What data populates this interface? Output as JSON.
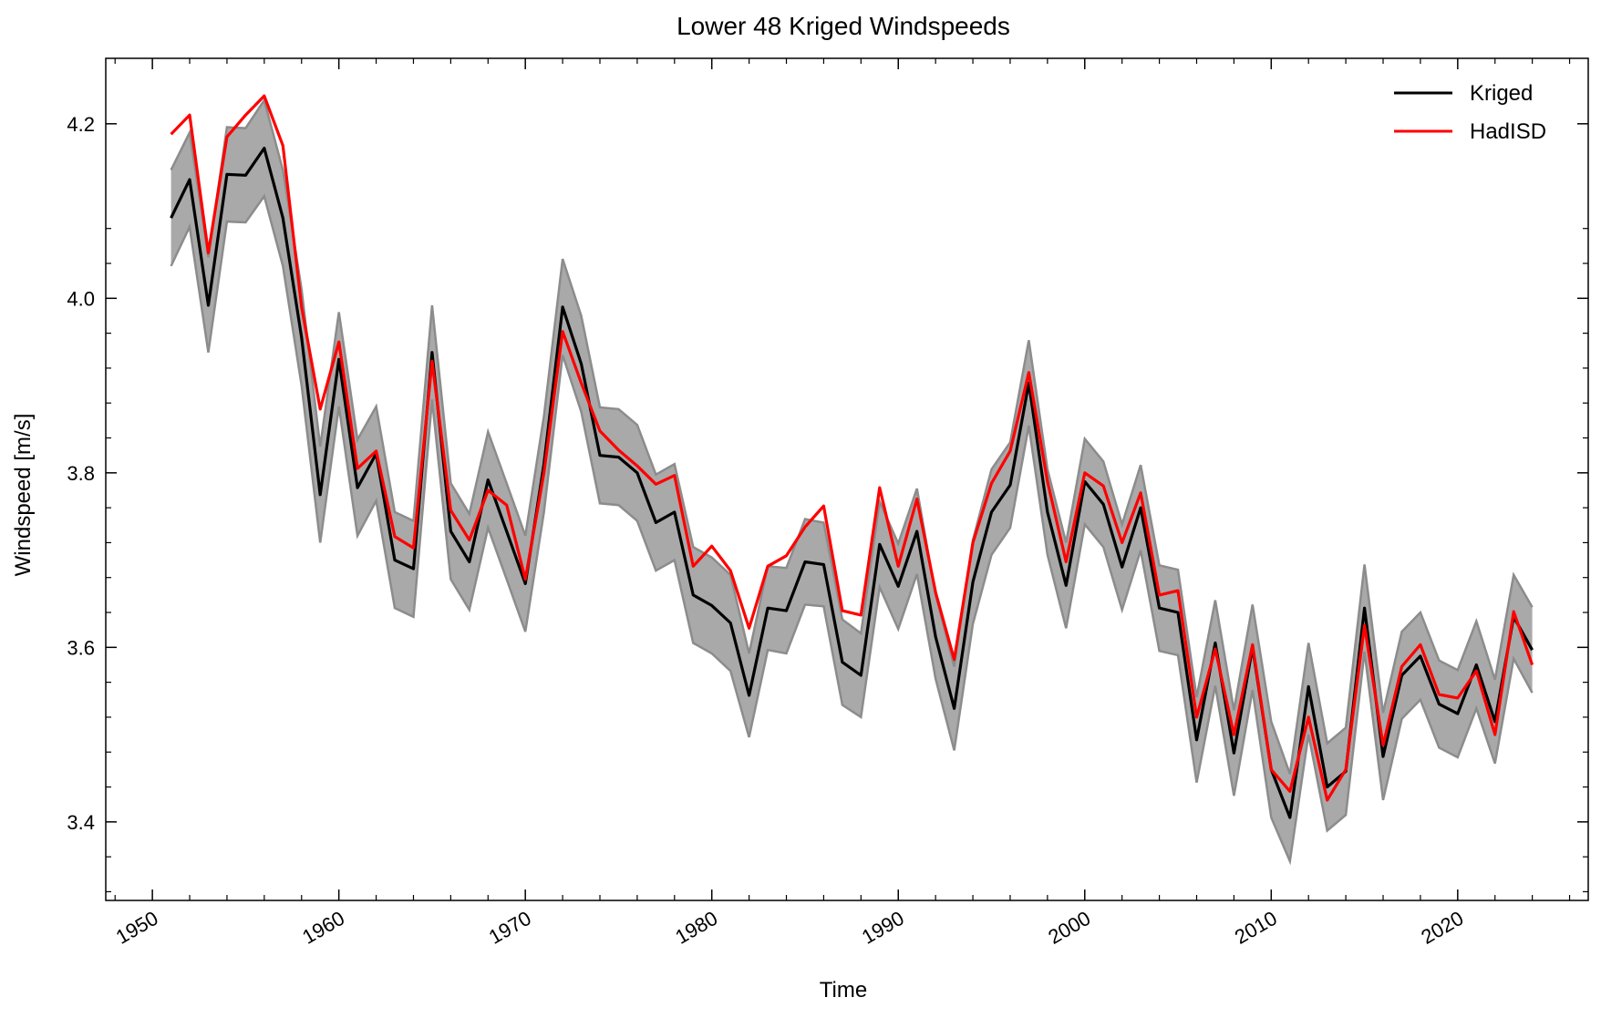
{
  "chart_data": {
    "type": "line",
    "title": "Lower 48 Kriged Windspeeds",
    "xlabel": "Time",
    "ylabel": "Windspeed [m/s]",
    "xlim": [
      1947.5,
      2027
    ],
    "ylim": [
      3.31,
      4.275
    ],
    "xticks": [
      1950,
      1960,
      1970,
      1980,
      1990,
      2000,
      2010,
      2020
    ],
    "xtick_labels": [
      "1950",
      "1960",
      "1970",
      "1980",
      "1990",
      "2000",
      "2010",
      "2020"
    ],
    "yticks": [
      3.4,
      3.6,
      3.8,
      4.0,
      4.2
    ],
    "ytick_labels": [
      "3.4",
      "3.6",
      "3.8",
      "4.0",
      "4.2"
    ],
    "grid": false,
    "legend_position": "top-right",
    "x": [
      1951,
      1952,
      1953,
      1954,
      1955,
      1956,
      1957,
      1958,
      1959,
      1960,
      1961,
      1962,
      1963,
      1964,
      1965,
      1966,
      1967,
      1968,
      1969,
      1970,
      1971,
      1972,
      1973,
      1974,
      1975,
      1976,
      1977,
      1978,
      1979,
      1980,
      1981,
      1982,
      1983,
      1984,
      1985,
      1986,
      1987,
      1988,
      1989,
      1990,
      1991,
      1992,
      1993,
      1994,
      1995,
      1996,
      1997,
      1998,
      1999,
      2000,
      2001,
      2002,
      2003,
      2004,
      2005,
      2006,
      2007,
      2008,
      2009,
      2010,
      2011,
      2012,
      2013,
      2014,
      2015,
      2016,
      2017,
      2018,
      2019,
      2020,
      2021,
      2022,
      2023,
      2024
    ],
    "series": [
      {
        "name": "Kriged",
        "color": "#000000",
        "values": [
          4.092,
          4.136,
          3.992,
          4.142,
          4.141,
          4.172,
          4.092,
          3.955,
          3.775,
          3.93,
          3.783,
          3.822,
          3.7,
          3.69,
          3.938,
          3.733,
          3.698,
          3.792,
          3.733,
          3.673,
          3.81,
          3.99,
          3.925,
          3.82,
          3.818,
          3.8,
          3.743,
          3.755,
          3.66,
          3.648,
          3.628,
          3.545,
          3.645,
          3.642,
          3.698,
          3.695,
          3.583,
          3.568,
          3.718,
          3.67,
          3.733,
          3.612,
          3.53,
          3.675,
          3.755,
          3.786,
          3.903,
          3.755,
          3.671,
          3.79,
          3.764,
          3.692,
          3.76,
          3.645,
          3.64,
          3.494,
          3.605,
          3.479,
          3.6,
          3.46,
          3.405,
          3.555,
          3.44,
          3.458,
          3.645,
          3.475,
          3.568,
          3.59,
          3.535,
          3.524,
          3.58,
          3.515,
          3.635,
          3.597
        ],
        "lower": [
          4.037,
          4.082,
          3.938,
          4.088,
          4.087,
          4.117,
          4.037,
          3.9,
          3.72,
          3.876,
          3.728,
          3.768,
          3.645,
          3.635,
          3.884,
          3.678,
          3.643,
          3.737,
          3.678,
          3.618,
          3.755,
          3.935,
          3.87,
          3.765,
          3.763,
          3.745,
          3.688,
          3.7,
          3.605,
          3.593,
          3.573,
          3.497,
          3.597,
          3.593,
          3.649,
          3.647,
          3.534,
          3.52,
          3.669,
          3.621,
          3.684,
          3.564,
          3.482,
          3.627,
          3.706,
          3.737,
          3.854,
          3.706,
          3.622,
          3.741,
          3.715,
          3.643,
          3.711,
          3.596,
          3.591,
          3.445,
          3.556,
          3.43,
          3.551,
          3.405,
          3.355,
          3.5,
          3.39,
          3.408,
          3.595,
          3.425,
          3.518,
          3.54,
          3.485,
          3.474,
          3.53,
          3.467,
          3.587,
          3.548
        ],
        "upper": [
          4.147,
          4.19,
          4.047,
          4.196,
          4.195,
          4.227,
          4.147,
          4.01,
          3.83,
          3.984,
          3.838,
          3.876,
          3.755,
          3.745,
          3.992,
          3.788,
          3.753,
          3.847,
          3.788,
          3.728,
          3.865,
          4.045,
          3.98,
          3.875,
          3.873,
          3.855,
          3.798,
          3.81,
          3.715,
          3.703,
          3.683,
          3.593,
          3.693,
          3.691,
          3.747,
          3.743,
          3.632,
          3.616,
          3.767,
          3.719,
          3.782,
          3.66,
          3.578,
          3.723,
          3.804,
          3.835,
          3.952,
          3.804,
          3.72,
          3.839,
          3.813,
          3.741,
          3.809,
          3.694,
          3.689,
          3.543,
          3.654,
          3.528,
          3.649,
          3.515,
          3.455,
          3.605,
          3.49,
          3.508,
          3.695,
          3.525,
          3.618,
          3.64,
          3.585,
          3.574,
          3.63,
          3.563,
          3.683,
          3.646
        ]
      },
      {
        "name": "HadISD",
        "color": "#ff0000",
        "values": [
          4.188,
          4.21,
          4.052,
          4.185,
          4.21,
          4.232,
          4.175,
          3.99,
          3.873,
          3.95,
          3.805,
          3.825,
          3.727,
          3.714,
          3.928,
          3.757,
          3.723,
          3.78,
          3.763,
          3.678,
          3.8,
          3.962,
          3.903,
          3.848,
          3.826,
          3.808,
          3.787,
          3.797,
          3.693,
          3.716,
          3.688,
          3.622,
          3.693,
          3.705,
          3.738,
          3.762,
          3.642,
          3.637,
          3.783,
          3.693,
          3.77,
          3.663,
          3.586,
          3.72,
          3.788,
          3.825,
          3.915,
          3.79,
          3.698,
          3.8,
          3.785,
          3.72,
          3.777,
          3.66,
          3.665,
          3.52,
          3.598,
          3.5,
          3.603,
          3.46,
          3.435,
          3.52,
          3.425,
          3.46,
          3.625,
          3.488,
          3.578,
          3.603,
          3.546,
          3.542,
          3.573,
          3.5,
          3.641,
          3.58
        ]
      }
    ],
    "fill_color": "#a9a9a9",
    "fill_edge_color": "#8c8c8c"
  }
}
